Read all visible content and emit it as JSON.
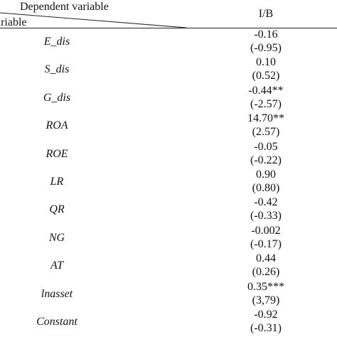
{
  "header": {
    "dependent_label": "Dependent variable",
    "variable_label": "ariable",
    "column_label": "I/B"
  },
  "rows": [
    {
      "name": "E_dis",
      "coef": "-0.16",
      "tstat": "(-0.95)"
    },
    {
      "name": "S_dis",
      "coef": "0.10",
      "tstat": "(0.52)"
    },
    {
      "name": "G_dis",
      "coef": "-0.44**",
      "tstat": "(-2.57)"
    },
    {
      "name": "ROA",
      "coef": "14.70**",
      "tstat": "(2.57)"
    },
    {
      "name": "ROE",
      "coef": "-0.05",
      "tstat": "(-0.22)"
    },
    {
      "name": "LR",
      "coef": "0.90",
      "tstat": "(0.80)"
    },
    {
      "name": "QR",
      "coef": "-0.42",
      "tstat": "(-0.33)"
    },
    {
      "name": "NG",
      "coef": "-0.002",
      "tstat": "(-0.17)"
    },
    {
      "name": "AT",
      "coef": "0.44",
      "tstat": "(0.26)"
    },
    {
      "name": "lnasset",
      "coef": "0.35***",
      "tstat": "(3,79)"
    },
    {
      "name": "Constant",
      "coef": "-0.92",
      "tstat": "(-0.31)"
    }
  ]
}
